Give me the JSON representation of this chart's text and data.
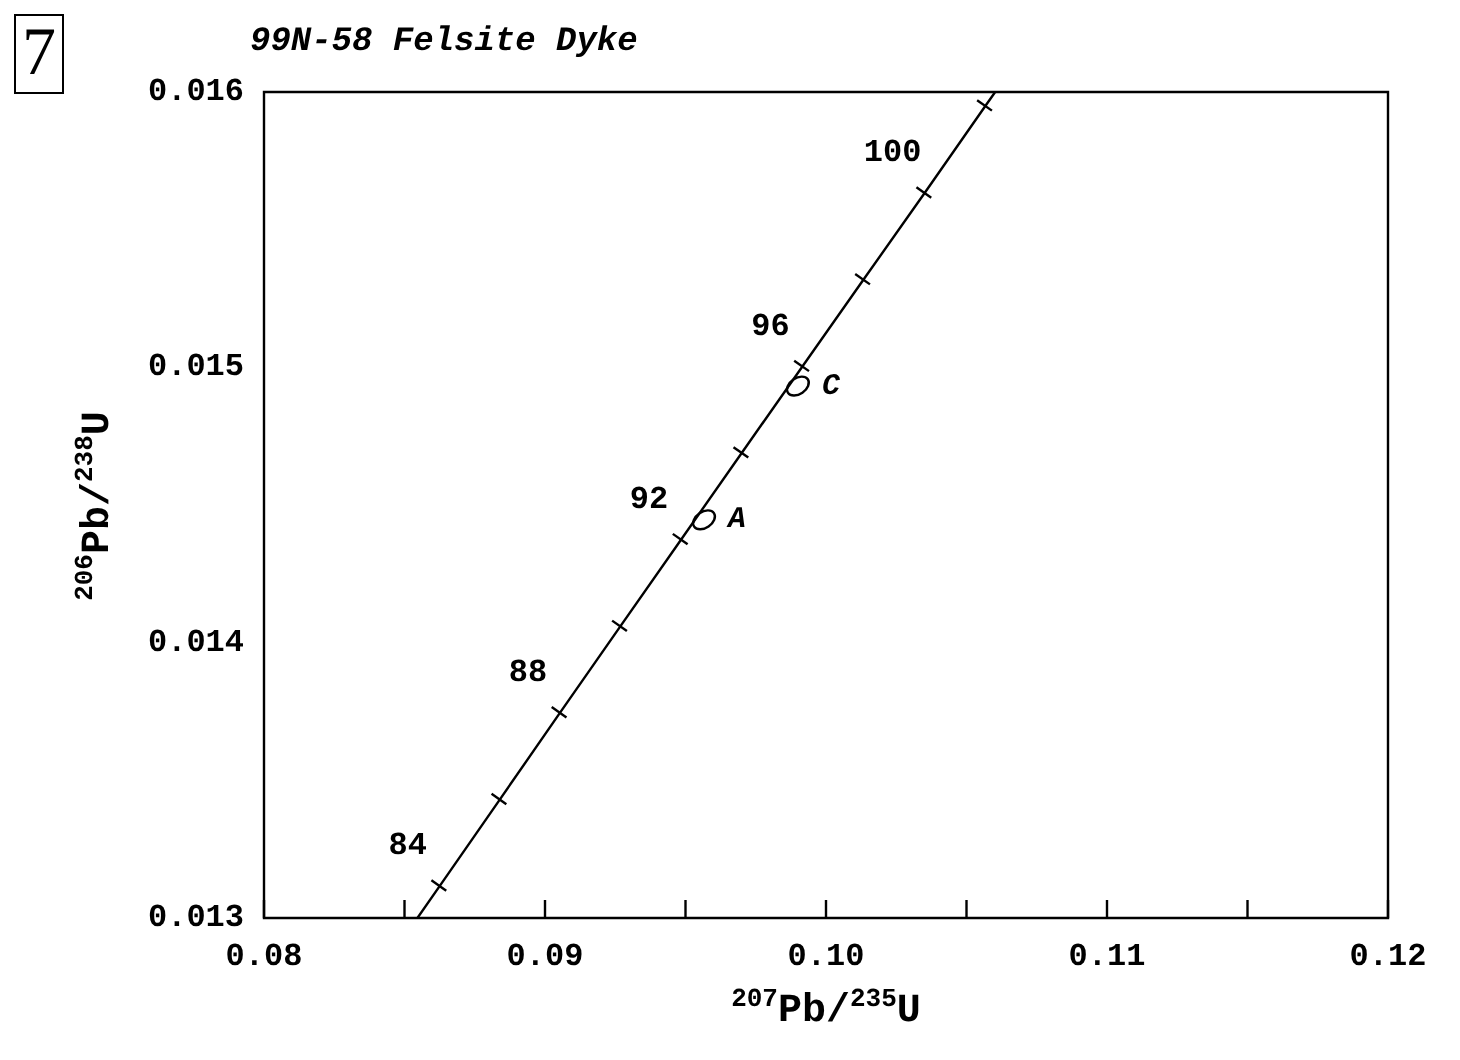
{
  "chart_data": {
    "type": "line",
    "title": "99N-58  Felsite Dyke",
    "xlabel": "$^{207}$Pb/$^{235}$U",
    "ylabel": "$^{206}$Pb/$^{238}$U",
    "xlim": [
      0.08,
      0.12
    ],
    "xticks": [
      0.08,
      {
        "value": 0.085,
        "label": null
      },
      0.09,
      {
        "value": 0.095,
        "label": null
      },
      {
        "value": 0.1,
        "label": "0.10"
      },
      {
        "value": 0.105,
        "label": null
      },
      0.11,
      {
        "value": 0.115,
        "label": null
      },
      0.12
    ],
    "ylim": [
      0.013,
      0.016
    ],
    "yticks": [
      0.013,
      0.014,
      0.015,
      0.016
    ],
    "annotations": [
      "7",
      {
        "text": "84",
        "x": 0.08625,
        "y": 0.013116
      },
      {
        "text": "88",
        "x": 0.09053,
        "y": 0.013745
      },
      {
        "text": "92",
        "x": 0.09484,
        "y": 0.014374
      },
      {
        "text": "96",
        "x": 0.09916,
        "y": 0.015003
      },
      {
        "text": "100",
        "x": 0.10351,
        "y": 0.015633
      }
    ],
    "grid": false,
    "series": [
      {
        "color": "#000000",
        "x": [
          0.08546,
          0.08625,
          0.08839,
          0.09053,
          0.09268,
          0.09484,
          0.097,
          0.09916,
          0.10133,
          0.10351,
          0.10567,
          0.10602
        ],
        "values": [
          0.013,
          0.013116,
          0.01343,
          0.013745,
          0.014059,
          0.014374,
          0.014689,
          0.015003,
          0.015318,
          0.015633,
          0.015949,
          0.016
        ]
      },
      {
        "type": "scatter",
        "color": "#000000",
        "x": [
          0.08625,
          0.08839,
          0.09053,
          0.09268,
          0.09484,
          0.097,
          0.09916,
          0.10133,
          0.10351,
          0.10567
        ],
        "values": [
          0.013116,
          0.01343,
          0.013745,
          0.014059,
          0.014374,
          0.014689,
          0.015003,
          0.015318,
          0.015633,
          0.015949
        ]
      },
      {
        "type": "scatter",
        "name": "A",
        "color": "#000000",
        "x": [
          0.09566
        ],
        "values": [
          0.014446
        ]
      },
      {
        "type": "scatter",
        "name": "C",
        "color": "#000000",
        "x": [
          0.099
        ],
        "values": [
          0.014932
        ]
      }
    ]
  }
}
